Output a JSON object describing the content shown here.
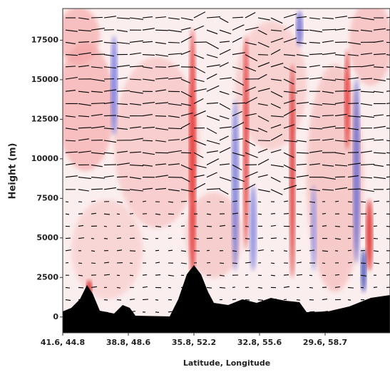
{
  "chart_data": {
    "type": "contour",
    "y_label": "Height (m)",
    "x_label": "Latitude, Longitude",
    "categories": [
      "41.6, 44.8",
      "38.8, 48.6",
      "35.8, 52.2",
      "32.8, 55.6",
      "29.6, 58.7"
    ],
    "ylim": [
      -1000,
      19500
    ],
    "yticks": [
      0,
      2500,
      5000,
      7500,
      10000,
      12500,
      15000,
      17500
    ]
  }
}
